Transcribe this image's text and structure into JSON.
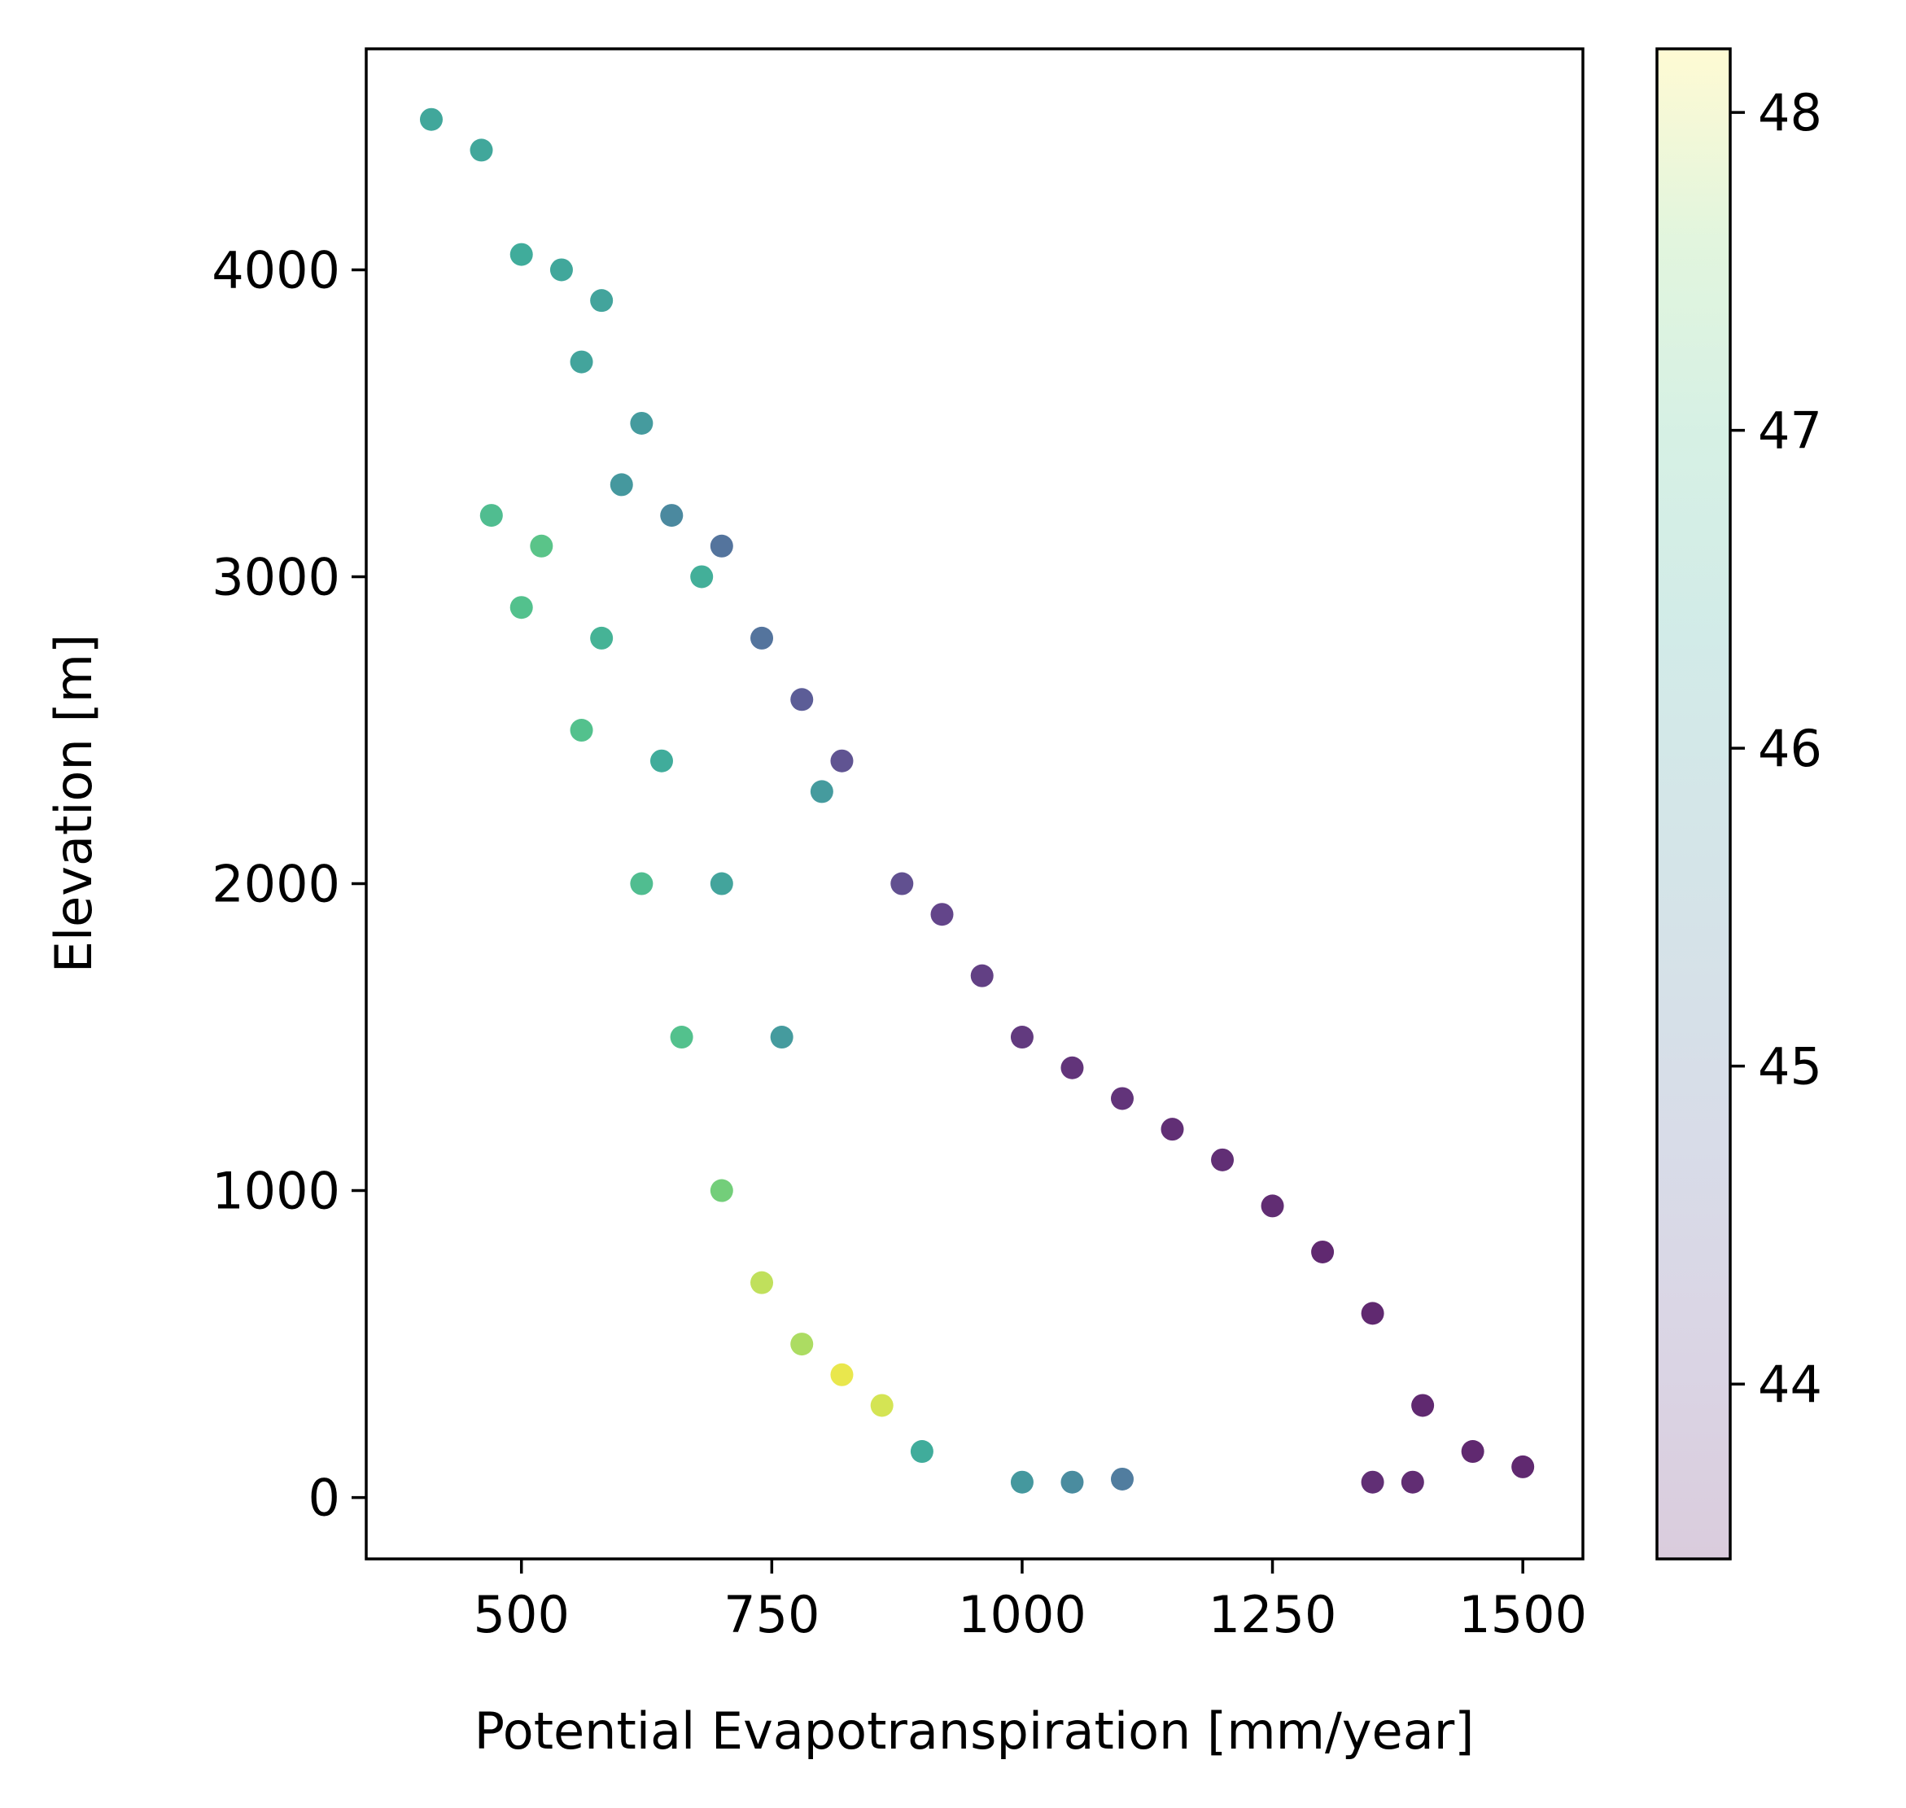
{
  "chart_data": {
    "type": "scatter",
    "xlabel": "Potential Evapotranspiration [mm/year]",
    "ylabel": "Elevation [m]",
    "xlim": [
      345,
      1560
    ],
    "ylim": [
      -200,
      4720
    ],
    "xticks": [
      500,
      750,
      1000,
      1250,
      1500
    ],
    "yticks": [
      0,
      1000,
      2000,
      3000,
      4000
    ],
    "grid": false,
    "legend": "none",
    "colorbar": {
      "colormap": "viridis",
      "range": [
        43.45,
        48.2
      ],
      "ticks": [
        44,
        45,
        46,
        47,
        48
      ],
      "alpha": 0.2
    },
    "series": [
      {
        "values_description_none": null,
        "x": [
          410,
          460,
          500,
          540,
          580,
          560,
          620,
          600,
          650,
          700,
          680,
          740,
          780,
          820,
          800,
          880,
          920,
          960,
          1000,
          1050,
          1100,
          1150,
          1200,
          1250,
          1300,
          1350,
          1400,
          1450,
          1500,
          1390,
          1350,
          1100,
          1050,
          1000,
          900,
          860,
          820,
          780,
          740,
          700,
          660,
          620,
          560,
          500,
          470,
          520,
          580,
          640,
          700,
          760
        ],
        "y": [
          4490,
          4390,
          4050,
          4000,
          3900,
          3700,
          3500,
          3300,
          3200,
          3100,
          3000,
          2800,
          2600,
          2400,
          2300,
          2000,
          1900,
          1700,
          1500,
          1400,
          1300,
          1200,
          1100,
          950,
          800,
          600,
          300,
          150,
          100,
          50,
          50,
          60,
          50,
          50,
          150,
          300,
          400,
          500,
          700,
          1000,
          1500,
          2000,
          2500,
          2900,
          3200,
          3100,
          2800,
          2400,
          2000,
          1500
        ],
        "c": [
          46.3,
          46.3,
          46.4,
          46.3,
          46.2,
          46.2,
          46.0,
          45.9,
          45.5,
          45.0,
          46.5,
          45.0,
          44.5,
          44.3,
          46.0,
          44.2,
          44.0,
          43.9,
          43.8,
          43.7,
          43.7,
          43.6,
          43.6,
          43.55,
          43.5,
          43.5,
          43.5,
          43.5,
          43.5,
          43.55,
          43.6,
          45.2,
          45.6,
          45.9,
          46.4,
          48.0,
          48.1,
          47.8,
          47.9,
          47.4,
          47.0,
          46.9,
          47.0,
          47.0,
          46.9,
          47.1,
          46.6,
          46.4,
          46.2,
          46.0
        ]
      }
    ]
  }
}
